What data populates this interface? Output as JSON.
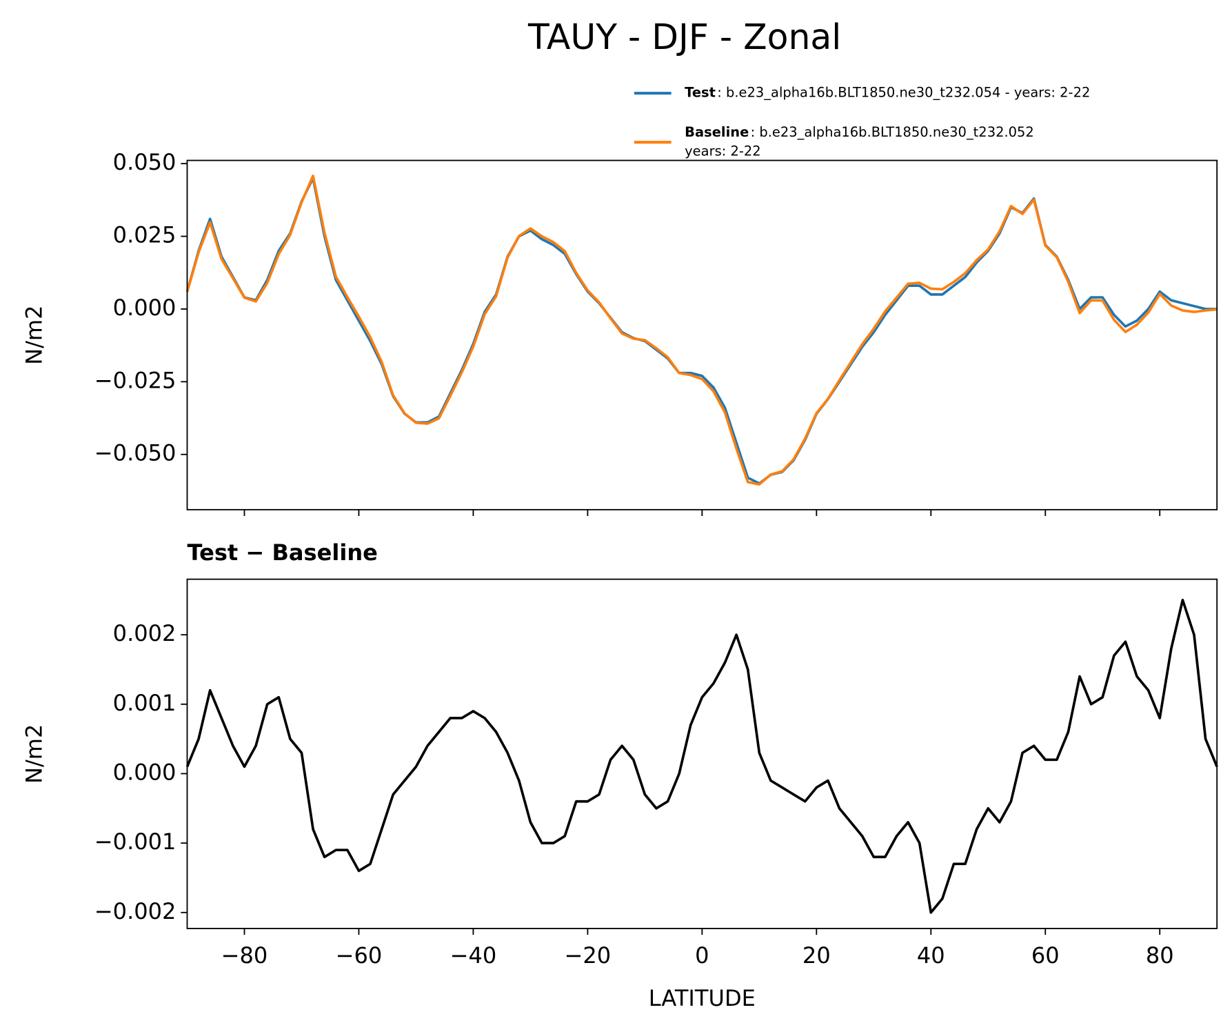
{
  "chart_data": [
    {
      "type": "line",
      "title": "TAUY - DJF - Zonal",
      "ylabel": "N/m2",
      "xlim": [
        -90,
        90
      ],
      "xticks": [
        -80,
        -60,
        -40,
        -20,
        0,
        20,
        40,
        60,
        80
      ],
      "ylim": [
        -0.069,
        0.0511
      ],
      "yticks": [
        {
          "value": -0.05,
          "label": "−0.050"
        },
        {
          "value": -0.025,
          "label": "−0.025"
        },
        {
          "value": 0,
          "label": "0.000"
        },
        {
          "value": 0.025,
          "label": "0.025"
        },
        {
          "value": 0.05,
          "label": "0.050"
        }
      ],
      "x": [
        -90,
        -88,
        -86,
        -84,
        -82,
        -80,
        -78,
        -76,
        -74,
        -72,
        -70,
        -68,
        -66,
        -64,
        -62,
        -60,
        -58,
        -56,
        -54,
        -52,
        -50,
        -48,
        -46,
        -44,
        -42,
        -40,
        -38,
        -36,
        -34,
        -32,
        -30,
        -28,
        -26,
        -24,
        -22,
        -20,
        -18,
        -16,
        -14,
        -12,
        -10,
        -8,
        -6,
        -4,
        -2,
        0,
        2,
        4,
        6,
        8,
        10,
        12,
        14,
        16,
        18,
        20,
        22,
        24,
        26,
        28,
        30,
        32,
        34,
        36,
        38,
        40,
        42,
        44,
        46,
        48,
        50,
        52,
        54,
        56,
        58,
        60,
        62,
        64,
        66,
        68,
        70,
        72,
        74,
        76,
        78,
        80,
        82,
        84,
        86,
        88,
        90
      ],
      "series": [
        {
          "name": "Test",
          "description": [
            ": b.e23_alpha16b.BLT1850.ne30_t232.054 - years: 2-22"
          ],
          "color": "#1f77b4",
          "values": [
            0.006,
            0.02,
            0.031,
            0.018,
            0.011,
            0.004,
            0.003,
            0.01,
            0.02,
            0.026,
            0.037,
            0.045,
            0.025,
            0.01,
            0.003,
            -0.004,
            -0.011,
            -0.019,
            -0.03,
            -0.036,
            -0.039,
            -0.039,
            -0.037,
            -0.029,
            -0.021,
            -0.012,
            -0.001,
            0.005,
            0.018,
            0.025,
            0.027,
            0.024,
            0.022,
            0.019,
            0.012,
            0.006,
            0.002,
            -0.003,
            -0.008,
            -0.01,
            -0.011,
            -0.014,
            -0.017,
            -0.022,
            -0.022,
            -0.023,
            -0.027,
            -0.034,
            -0.046,
            -0.058,
            -0.06,
            -0.057,
            -0.056,
            -0.052,
            -0.045,
            -0.036,
            -0.031,
            -0.025,
            -0.019,
            -0.013,
            -0.008,
            -0.002,
            0.003,
            0.008,
            0.008,
            0.005,
            0.005,
            0.008,
            0.011,
            0.016,
            0.02,
            0.026,
            0.035,
            0.033,
            0.038,
            0.022,
            0.018,
            0.01,
            0.0,
            0.004,
            0.004,
            -0.002,
            -0.006,
            -0.004,
            0.0,
            0.006,
            0.003,
            0.002,
            0.001,
            0.0,
            0.0
          ]
        },
        {
          "name": "Baseline",
          "description": [
            ": b.e23_alpha16b.BLT1850.ne30_t232.052",
            "years: 2-22"
          ],
          "color": "#ff7f0e",
          "values": [
            0.0059,
            0.0195,
            0.0298,
            0.0172,
            0.0106,
            0.0039,
            0.0026,
            0.009,
            0.0189,
            0.0255,
            0.0367,
            0.0458,
            0.0262,
            0.0111,
            0.0041,
            -0.0026,
            -0.0097,
            -0.0182,
            -0.0297,
            -0.0359,
            -0.0391,
            -0.0394,
            -0.0376,
            -0.0298,
            -0.0218,
            -0.0129,
            -0.0018,
            0.0044,
            0.0177,
            0.0251,
            0.0277,
            0.025,
            0.023,
            0.0199,
            0.0124,
            0.0064,
            0.0023,
            -0.0032,
            -0.0084,
            -0.0102,
            -0.0107,
            -0.0135,
            -0.0166,
            -0.022,
            -0.0227,
            -0.0241,
            -0.0283,
            -0.0356,
            -0.048,
            -0.0595,
            -0.0603,
            -0.0569,
            -0.0558,
            -0.0517,
            -0.0446,
            -0.0358,
            -0.0309,
            -0.0245,
            -0.0183,
            -0.0121,
            -0.0068,
            -0.0008,
            0.0039,
            0.0087,
            0.009,
            0.007,
            0.0068,
            0.0093,
            0.0123,
            0.0168,
            0.0205,
            0.0267,
            0.0354,
            0.0327,
            0.0376,
            0.0218,
            0.0178,
            0.0094,
            -0.0014,
            0.003,
            0.0029,
            -0.0037,
            -0.0079,
            -0.0054,
            -0.0012,
            0.0052,
            0.0012,
            -0.0005,
            -0.001,
            -0.0005,
            -0.0001
          ]
        }
      ]
    },
    {
      "type": "line",
      "subtitle": "Test − Baseline",
      "ylabel": "N/m2",
      "xlabel": "LATITUDE",
      "xlim": [
        -90,
        90
      ],
      "xticks": [
        {
          "value": -80,
          "label": "−80"
        },
        {
          "value": -60,
          "label": "−60"
        },
        {
          "value": -40,
          "label": "−40"
        },
        {
          "value": -20,
          "label": "−20"
        },
        0,
        20,
        40,
        60,
        80
      ],
      "ylim": [
        -0.00223,
        0.0028
      ],
      "yticks": [
        {
          "value": -0.002,
          "label": "−0.002"
        },
        {
          "value": -0.001,
          "label": "−0.001"
        },
        {
          "value": 0,
          "label": "0.000"
        },
        {
          "value": 0.001,
          "label": "0.001"
        },
        {
          "value": 0.002,
          "label": "0.002"
        }
      ],
      "x": [
        -90,
        -88,
        -86,
        -84,
        -82,
        -80,
        -78,
        -76,
        -74,
        -72,
        -70,
        -68,
        -66,
        -64,
        -62,
        -60,
        -58,
        -56,
        -54,
        -52,
        -50,
        -48,
        -46,
        -44,
        -42,
        -40,
        -38,
        -36,
        -34,
        -32,
        -30,
        -28,
        -26,
        -24,
        -22,
        -20,
        -18,
        -16,
        -14,
        -12,
        -10,
        -8,
        -6,
        -4,
        -2,
        0,
        2,
        4,
        6,
        8,
        10,
        12,
        14,
        16,
        18,
        20,
        22,
        24,
        26,
        28,
        30,
        32,
        34,
        36,
        38,
        40,
        42,
        44,
        46,
        48,
        50,
        52,
        54,
        56,
        58,
        60,
        62,
        64,
        66,
        68,
        70,
        72,
        74,
        76,
        78,
        80,
        82,
        84,
        86,
        88,
        90
      ],
      "series": [
        {
          "color": "#000000",
          "values": [
            0.0001,
            0.0005,
            0.0012,
            0.0008,
            0.0004,
            0.0001,
            0.0004,
            0.001,
            0.0011,
            0.0005,
            0.0003,
            -0.0008,
            -0.0012,
            -0.0011,
            -0.0011,
            -0.0014,
            -0.0013,
            -0.0008,
            -0.0003,
            -0.0001,
            0.0001,
            0.0004,
            0.0006,
            0.0008,
            0.0008,
            0.0009,
            0.0008,
            0.0006,
            0.0003,
            -0.0001,
            -0.0007,
            -0.001,
            -0.001,
            -0.0009,
            -0.0004,
            -0.0004,
            -0.0003,
            0.0002,
            0.0004,
            0.0002,
            -0.0003,
            -0.0005,
            -0.0004,
            0.0,
            0.0007,
            0.0011,
            0.0013,
            0.0016,
            0.002,
            0.0015,
            0.0003,
            -0.0001,
            -0.0002,
            -0.0003,
            -0.0004,
            -0.0002,
            -0.0001,
            -0.0005,
            -0.0007,
            -0.0009,
            -0.0012,
            -0.0012,
            -0.0009,
            -0.0007,
            -0.001,
            -0.002,
            -0.0018,
            -0.0013,
            -0.0013,
            -0.0008,
            -0.0005,
            -0.0007,
            -0.0004,
            0.0003,
            0.0004,
            0.0002,
            0.0002,
            0.0006,
            0.0014,
            0.001,
            0.0011,
            0.0017,
            0.0019,
            0.0014,
            0.0012,
            0.0008,
            0.0018,
            0.0025,
            0.002,
            0.0005,
            0.0001
          ]
        }
      ]
    }
  ]
}
